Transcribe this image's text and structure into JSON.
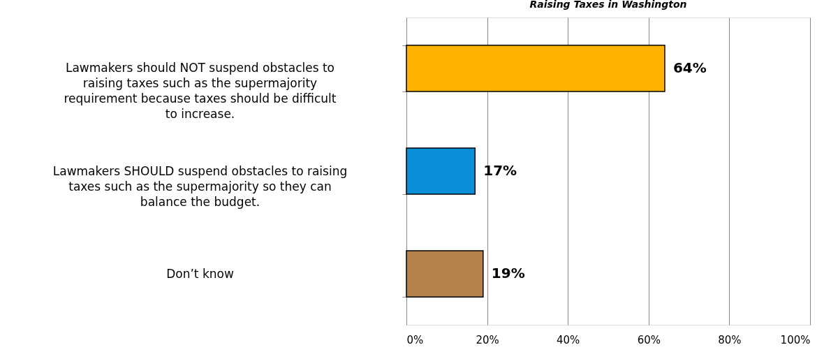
{
  "chart_data": {
    "type": "bar",
    "orientation": "horizontal",
    "title": "Raising Taxes in Washington",
    "categories": [
      "Lawmakers should NOT suspend obstacles to raising taxes such as the supermajority requirement because taxes should be difficult to increase.",
      "Lawmakers SHOULD suspend obstacles to raising taxes such as the supermajority so they can balance the budget.",
      "Don’t know"
    ],
    "values": [
      64,
      17,
      19
    ],
    "colors": [
      "#ffb300",
      "#0b8ed8",
      "#b5844c"
    ],
    "value_labels": [
      "64%",
      "17%",
      "19%"
    ],
    "xlim": [
      0,
      100
    ],
    "xticks": [
      {
        "value": 0,
        "label": "0%"
      },
      {
        "value": 20,
        "label": "20%"
      },
      {
        "value": 40,
        "label": "40%"
      },
      {
        "value": 60,
        "label": "60%"
      },
      {
        "value": 80,
        "label": "80%"
      },
      {
        "value": 100,
        "label": "100%"
      }
    ],
    "grid": "x"
  }
}
